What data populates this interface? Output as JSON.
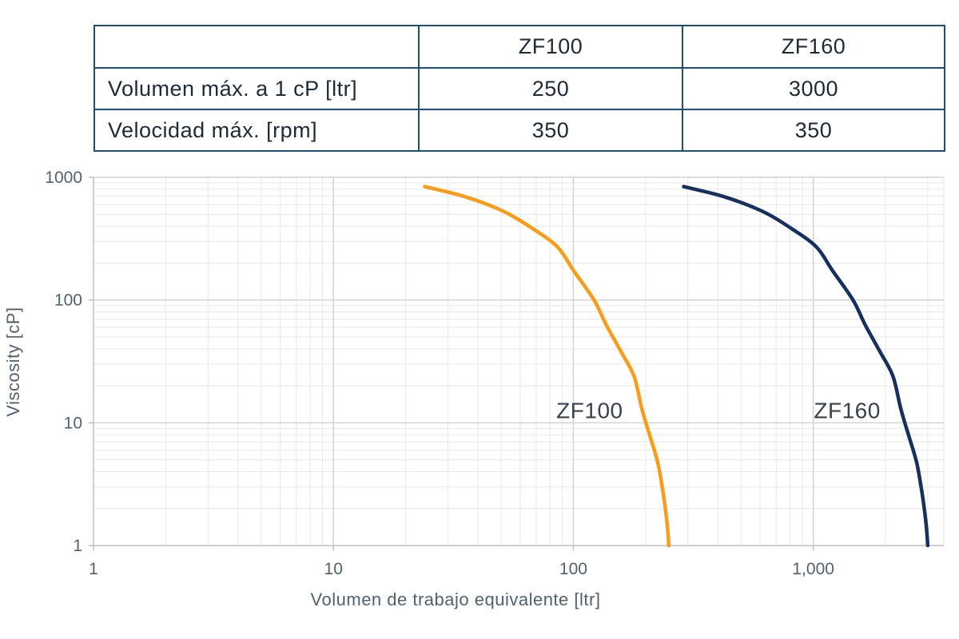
{
  "table": {
    "headers": [
      "",
      "ZF100",
      "ZF160"
    ],
    "rows": [
      {
        "label": "Volumen máx. a 1 cP [ltr]",
        "values": [
          "250",
          "3000"
        ]
      },
      {
        "label": "Velocidad máx. [rpm]",
        "values": [
          "350",
          "350"
        ]
      }
    ]
  },
  "chart_data": {
    "type": "line",
    "x_scale": "log",
    "y_scale": "log",
    "xlabel": "Volumen de trabajo equivalente [ltr]",
    "ylabel": "Viscosity [cP]",
    "xlim": [
      1,
      3500
    ],
    "ylim": [
      1,
      1000
    ],
    "grid": "log major+minor",
    "legend": "inline curve labels",
    "x_ticks": [
      {
        "v": 1,
        "label": "1"
      },
      {
        "v": 10,
        "label": "10"
      },
      {
        "v": 100,
        "label": "100"
      },
      {
        "v": 1000,
        "label": "1,000"
      }
    ],
    "y_ticks": [
      {
        "v": 1,
        "label": "1"
      },
      {
        "v": 10,
        "label": "10"
      },
      {
        "v": 100,
        "label": "100"
      },
      {
        "v": 1000,
        "label": "1000"
      }
    ],
    "series": [
      {
        "name": "ZF100",
        "color": "#F79C1B",
        "label_at": [
          117,
          12.5
        ],
        "points": [
          [
            24,
            840
          ],
          [
            35,
            700
          ],
          [
            51,
            530
          ],
          [
            68,
            380
          ],
          [
            86,
            270
          ],
          [
            100,
            175
          ],
          [
            122,
            100
          ],
          [
            137,
            63
          ],
          [
            158,
            38
          ],
          [
            179,
            24
          ],
          [
            193,
            13
          ],
          [
            209,
            7.7
          ],
          [
            225,
            4.7
          ],
          [
            238,
            2.5
          ],
          [
            246,
            1.5
          ],
          [
            250,
            1
          ]
        ]
      },
      {
        "name": "ZF160",
        "color": "#17305E",
        "label_at": [
          1385,
          12.5
        ],
        "points": [
          [
            288,
            840
          ],
          [
            420,
            700
          ],
          [
            612,
            530
          ],
          [
            816,
            380
          ],
          [
            1032,
            270
          ],
          [
            1200,
            175
          ],
          [
            1464,
            100
          ],
          [
            1644,
            63
          ],
          [
            1896,
            38
          ],
          [
            2148,
            24
          ],
          [
            2316,
            13
          ],
          [
            2508,
            7.7
          ],
          [
            2700,
            4.7
          ],
          [
            2856,
            2.5
          ],
          [
            2952,
            1.5
          ],
          [
            3000,
            1
          ]
        ]
      }
    ]
  },
  "colors": {
    "table_border": "#1F4E79",
    "table_text": "#1E2A36",
    "tick_text": "#51626E",
    "curve_label_text": "#37424D",
    "zf100_curve": "#F79C1B",
    "zf160_curve": "#17305E",
    "grid_minor": "#E8E8E8",
    "grid_major": "#D2D2D2",
    "axis_line": "#BFBFBF"
  }
}
